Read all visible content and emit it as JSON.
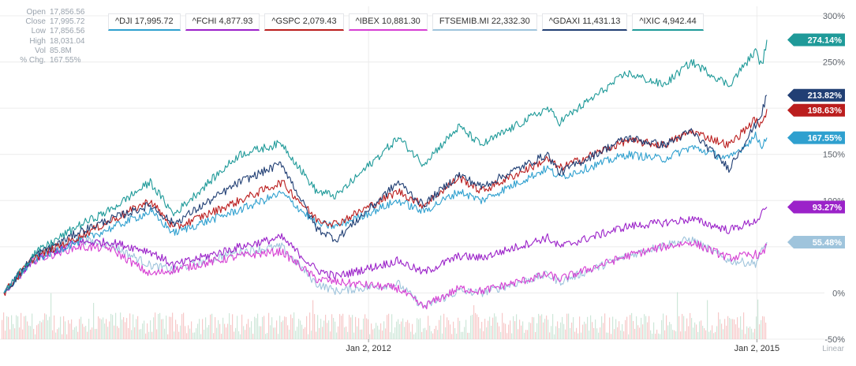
{
  "ohlc_panel": {
    "rows": [
      {
        "label": "Open",
        "value": "17,856.56"
      },
      {
        "label": "Close",
        "value": "17,995.72"
      },
      {
        "label": "Low",
        "value": "17,856.56"
      },
      {
        "label": "High",
        "value": "18,031.04"
      },
      {
        "label": "Vol",
        "value": "85.8M"
      },
      {
        "label": "% Chg.",
        "value": "167.55%"
      }
    ]
  },
  "legend": [
    {
      "label": "^DJI 17,995.72",
      "color": "#2fa0cf"
    },
    {
      "label": "^FCHI 4,877.93",
      "color": "#9b22c9"
    },
    {
      "label": "^GSPC 2,079.43",
      "color": "#bb1e1e"
    },
    {
      "label": "^IBEX 10,881.30",
      "color": "#d63fd3"
    },
    {
      "label": "FTSEMIB.MI 22,332.30",
      "color": "#9fc4dc"
    },
    {
      "label": "^GDAXI 11,431.13",
      "color": "#213f74"
    },
    {
      "label": "^IXIC 4,942.44",
      "color": "#1f9a99"
    }
  ],
  "chart_data": {
    "type": "line",
    "x_start": "2009-03-09",
    "x_end": "2015-01-30",
    "x_ticks": [
      {
        "date": "2012-01-02",
        "label": "Jan 2, 2012"
      },
      {
        "date": "2015-01-02",
        "label": "Jan 2, 2015"
      }
    ],
    "y_unit": "%",
    "ylim": [
      -50,
      300
    ],
    "y_ticks": [
      -50,
      0,
      100,
      150,
      250,
      300
    ],
    "y_gridlines": [
      -50,
      0,
      50,
      100,
      150,
      200,
      250,
      300
    ],
    "scale_label": "Linear",
    "grid": true,
    "series": [
      {
        "name": "^IXIC",
        "color": "#1f9a99",
        "end_label": "274.14%",
        "points": [
          [
            "2009-03-09",
            0
          ],
          [
            "2009-06-01",
            42
          ],
          [
            "2009-10-01",
            72
          ],
          [
            "2010-01-04",
            90
          ],
          [
            "2010-04-26",
            120
          ],
          [
            "2010-07-01",
            85
          ],
          [
            "2011-01-03",
            150
          ],
          [
            "2011-05-02",
            162
          ],
          [
            "2011-08-08",
            110
          ],
          [
            "2011-10-03",
            105
          ],
          [
            "2012-03-26",
            168
          ],
          [
            "2012-06-04",
            140
          ],
          [
            "2012-09-14",
            180
          ],
          [
            "2012-11-15",
            160
          ],
          [
            "2013-05-21",
            200
          ],
          [
            "2013-06-24",
            185
          ],
          [
            "2013-12-31",
            238
          ],
          [
            "2014-04-14",
            225
          ],
          [
            "2014-07-01",
            250
          ],
          [
            "2014-10-15",
            225
          ],
          [
            "2014-12-29",
            262
          ],
          [
            "2015-01-16",
            245
          ],
          [
            "2015-01-30",
            274
          ]
        ]
      },
      {
        "name": "^GDAXI",
        "color": "#213f74",
        "end_label": "213.82%",
        "points": [
          [
            "2009-03-09",
            0
          ],
          [
            "2009-06-01",
            40
          ],
          [
            "2009-10-01",
            65
          ],
          [
            "2010-01-04",
            80
          ],
          [
            "2010-04-26",
            95
          ],
          [
            "2010-07-01",
            75
          ],
          [
            "2011-01-03",
            120
          ],
          [
            "2011-05-02",
            140
          ],
          [
            "2011-08-08",
            70
          ],
          [
            "2011-10-03",
            58
          ],
          [
            "2012-03-26",
            120
          ],
          [
            "2012-06-04",
            95
          ],
          [
            "2012-09-14",
            128
          ],
          [
            "2012-11-15",
            115
          ],
          [
            "2013-05-21",
            150
          ],
          [
            "2013-06-24",
            130
          ],
          [
            "2013-12-31",
            168
          ],
          [
            "2014-04-14",
            160
          ],
          [
            "2014-07-01",
            175
          ],
          [
            "2014-10-15",
            135
          ],
          [
            "2014-12-29",
            182
          ],
          [
            "2015-01-16",
            195
          ],
          [
            "2015-01-30",
            214
          ]
        ]
      },
      {
        "name": "^GSPC",
        "color": "#bb1e1e",
        "end_label": "198.63%",
        "points": [
          [
            "2009-03-09",
            0
          ],
          [
            "2009-06-01",
            38
          ],
          [
            "2009-10-01",
            60
          ],
          [
            "2010-01-04",
            78
          ],
          [
            "2010-04-26",
            100
          ],
          [
            "2010-07-01",
            70
          ],
          [
            "2011-01-03",
            100
          ],
          [
            "2011-05-02",
            120
          ],
          [
            "2011-08-08",
            80
          ],
          [
            "2011-10-03",
            75
          ],
          [
            "2012-03-26",
            110
          ],
          [
            "2012-06-04",
            95
          ],
          [
            "2012-09-14",
            125
          ],
          [
            "2012-11-15",
            110
          ],
          [
            "2013-05-21",
            145
          ],
          [
            "2013-06-24",
            135
          ],
          [
            "2013-12-31",
            165
          ],
          [
            "2014-04-14",
            160
          ],
          [
            "2014-07-01",
            175
          ],
          [
            "2014-10-15",
            160
          ],
          [
            "2014-12-29",
            188
          ],
          [
            "2015-01-16",
            180
          ],
          [
            "2015-01-30",
            199
          ]
        ]
      },
      {
        "name": "^DJI",
        "color": "#2fa0cf",
        "end_label": "167.55%",
        "points": [
          [
            "2009-03-09",
            0
          ],
          [
            "2009-06-01",
            36
          ],
          [
            "2009-10-01",
            55
          ],
          [
            "2010-01-04",
            70
          ],
          [
            "2010-04-26",
            88
          ],
          [
            "2010-07-01",
            65
          ],
          [
            "2011-01-03",
            90
          ],
          [
            "2011-05-02",
            108
          ],
          [
            "2011-08-08",
            75
          ],
          [
            "2011-10-03",
            72
          ],
          [
            "2012-03-26",
            100
          ],
          [
            "2012-06-04",
            88
          ],
          [
            "2012-09-14",
            110
          ],
          [
            "2012-11-15",
            100
          ],
          [
            "2013-05-21",
            135
          ],
          [
            "2013-06-24",
            125
          ],
          [
            "2013-12-31",
            150
          ],
          [
            "2014-04-14",
            145
          ],
          [
            "2014-07-01",
            158
          ],
          [
            "2014-10-15",
            145
          ],
          [
            "2014-12-29",
            170
          ],
          [
            "2015-01-16",
            160
          ],
          [
            "2015-01-30",
            168
          ]
        ]
      },
      {
        "name": "^FCHI",
        "color": "#9b22c9",
        "end_label": "93.27%",
        "points": [
          [
            "2009-03-09",
            0
          ],
          [
            "2009-06-01",
            35
          ],
          [
            "2009-10-01",
            55
          ],
          [
            "2010-01-04",
            55
          ],
          [
            "2010-04-26",
            45
          ],
          [
            "2010-07-01",
            30
          ],
          [
            "2011-01-03",
            50
          ],
          [
            "2011-05-02",
            60
          ],
          [
            "2011-08-08",
            25
          ],
          [
            "2011-10-03",
            18
          ],
          [
            "2012-03-26",
            35
          ],
          [
            "2012-06-04",
            22
          ],
          [
            "2012-09-14",
            40
          ],
          [
            "2012-11-15",
            38
          ],
          [
            "2013-05-21",
            60
          ],
          [
            "2013-06-24",
            50
          ],
          [
            "2013-12-31",
            72
          ],
          [
            "2014-04-14",
            76
          ],
          [
            "2014-07-01",
            80
          ],
          [
            "2014-10-15",
            68
          ],
          [
            "2014-12-29",
            78
          ],
          [
            "2015-01-16",
            85
          ],
          [
            "2015-01-30",
            93
          ]
        ]
      },
      {
        "name": "^IBEX",
        "color": "#d63fd3",
        "end_label": "",
        "points": [
          [
            "2009-03-09",
            0
          ],
          [
            "2009-06-01",
            35
          ],
          [
            "2009-10-01",
            50
          ],
          [
            "2010-01-04",
            48
          ],
          [
            "2010-04-26",
            20
          ],
          [
            "2010-07-01",
            25
          ],
          [
            "2011-01-03",
            40
          ],
          [
            "2011-05-02",
            45
          ],
          [
            "2011-08-08",
            15
          ],
          [
            "2011-10-03",
            12
          ],
          [
            "2012-03-26",
            5
          ],
          [
            "2012-06-04",
            -15
          ],
          [
            "2012-09-14",
            5
          ],
          [
            "2012-11-15",
            2
          ],
          [
            "2013-05-21",
            20
          ],
          [
            "2013-06-24",
            15
          ],
          [
            "2013-12-31",
            40
          ],
          [
            "2014-04-14",
            50
          ],
          [
            "2014-07-01",
            55
          ],
          [
            "2014-10-15",
            38
          ],
          [
            "2014-12-29",
            42
          ],
          [
            "2015-01-16",
            40
          ],
          [
            "2015-01-30",
            52
          ]
        ]
      },
      {
        "name": "FTSEMIB.MI",
        "color": "#9fc4dc",
        "end_label": "55.48%",
        "points": [
          [
            "2009-03-09",
            0
          ],
          [
            "2009-06-01",
            40
          ],
          [
            "2009-10-01",
            58
          ],
          [
            "2010-01-04",
            52
          ],
          [
            "2010-04-26",
            30
          ],
          [
            "2010-07-01",
            25
          ],
          [
            "2011-01-03",
            45
          ],
          [
            "2011-05-02",
            50
          ],
          [
            "2011-08-08",
            10
          ],
          [
            "2011-10-03",
            2
          ],
          [
            "2012-03-26",
            10
          ],
          [
            "2012-06-04",
            -15
          ],
          [
            "2012-09-14",
            2
          ],
          [
            "2012-11-15",
            0
          ],
          [
            "2013-05-21",
            20
          ],
          [
            "2013-06-24",
            12
          ],
          [
            "2013-12-31",
            40
          ],
          [
            "2014-04-14",
            52
          ],
          [
            "2014-07-01",
            58
          ],
          [
            "2014-10-15",
            35
          ],
          [
            "2014-12-29",
            32
          ],
          [
            "2015-01-16",
            45
          ],
          [
            "2015-01-30",
            55
          ]
        ]
      }
    ]
  }
}
